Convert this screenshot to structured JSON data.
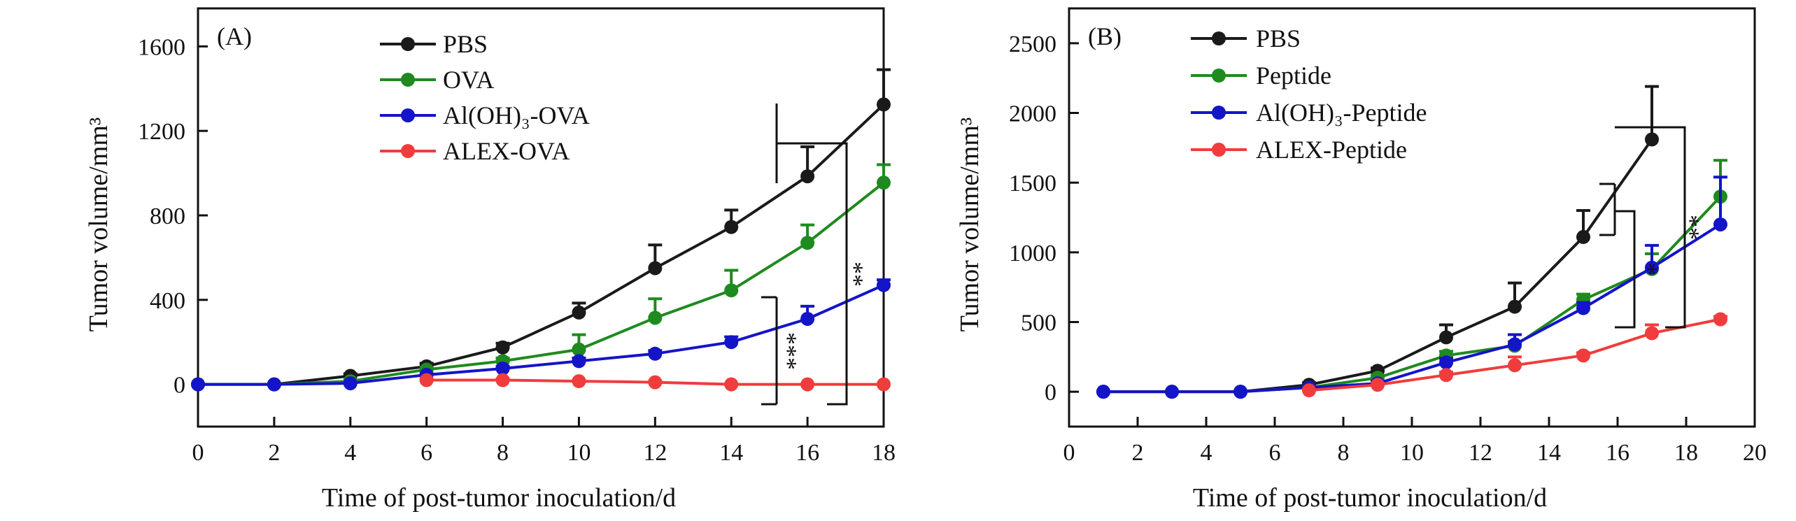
{
  "chart_data": [
    {
      "type": "line",
      "panel_label": "(A)",
      "xlabel": "Time of post-tumor inoculation/d",
      "ylabel": "Tumor volume/mm³",
      "xlim": [
        0,
        18
      ],
      "ylim": [
        -200,
        1780
      ],
      "xticks": [
        0,
        2,
        4,
        6,
        8,
        10,
        12,
        14,
        16,
        18
      ],
      "yticks": [
        0,
        400,
        800,
        1200,
        1600
      ],
      "legend": [
        "PBS",
        "OVA",
        "Al(OH)₃-OVA",
        "ALEX-OVA"
      ],
      "series": [
        {
          "name": "PBS",
          "color": "#1a1a1a",
          "x": [
            0,
            2,
            4,
            6,
            8,
            10,
            12,
            14,
            16,
            18
          ],
          "y": [
            0,
            0,
            40,
            85,
            175,
            340,
            550,
            745,
            985,
            1325
          ],
          "err": [
            0,
            0,
            10,
            15,
            20,
            45,
            110,
            80,
            140,
            165
          ]
        },
        {
          "name": "OVA",
          "color": "#1f8a1f",
          "x": [
            0,
            2,
            4,
            6,
            8,
            10,
            12,
            14,
            16,
            18
          ],
          "y": [
            0,
            0,
            15,
            70,
            110,
            165,
            315,
            445,
            670,
            955
          ],
          "err": [
            0,
            0,
            5,
            10,
            15,
            70,
            90,
            95,
            85,
            85
          ]
        },
        {
          "name": "Al(OH)₃-OVA",
          "color": "#1414c8",
          "x": [
            0,
            2,
            4,
            6,
            8,
            10,
            12,
            14,
            16,
            18
          ],
          "y": [
            0,
            0,
            5,
            45,
            75,
            110,
            145,
            200,
            310,
            470
          ],
          "err": [
            0,
            0,
            5,
            5,
            10,
            15,
            15,
            25,
            60,
            25
          ]
        },
        {
          "name": "ALEX-OVA",
          "color": "#f03c3c",
          "x": [
            6,
            8,
            10,
            12,
            14,
            16,
            18
          ],
          "y": [
            20,
            20,
            15,
            10,
            0,
            0,
            0
          ],
          "err": [
            5,
            5,
            5,
            5,
            0,
            0,
            0
          ]
        }
      ],
      "significance": [
        "***",
        "**"
      ]
    },
    {
      "type": "line",
      "panel_label": "(B)",
      "xlabel": "Time of post-tumor inoculation/d",
      "ylabel": "Tumor volume/mm³",
      "xlim": [
        0,
        20
      ],
      "ylim": [
        -250,
        2750
      ],
      "xticks": [
        0,
        2,
        4,
        6,
        8,
        10,
        12,
        14,
        16,
        18,
        20
      ],
      "yticks": [
        0,
        500,
        1000,
        1500,
        2000,
        2500
      ],
      "legend": [
        "PBS",
        "Peptide",
        "Al(OH)₃-Peptide",
        "ALEX-Peptide"
      ],
      "series": [
        {
          "name": "PBS",
          "color": "#1a1a1a",
          "x": [
            1,
            3,
            5,
            7,
            9,
            11,
            13,
            15,
            17
          ],
          "y": [
            0,
            0,
            0,
            50,
            150,
            390,
            610,
            1110,
            1810
          ],
          "err": [
            0,
            0,
            0,
            15,
            20,
            90,
            170,
            190,
            380
          ]
        },
        {
          "name": "Peptide",
          "color": "#1f8a1f",
          "x": [
            1,
            3,
            5,
            7,
            9,
            11,
            13,
            15,
            17,
            19
          ],
          "y": [
            0,
            0,
            0,
            30,
            100,
            260,
            330,
            660,
            880,
            1400
          ],
          "err": [
            0,
            0,
            0,
            10,
            15,
            30,
            30,
            40,
            110,
            260
          ]
        },
        {
          "name": "Al(OH)₃-Peptide",
          "color": "#1414c8",
          "x": [
            1,
            3,
            5,
            7,
            9,
            11,
            13,
            15,
            17,
            19
          ],
          "y": [
            0,
            0,
            0,
            30,
            60,
            210,
            340,
            600,
            890,
            1200
          ],
          "err": [
            0,
            0,
            0,
            10,
            15,
            30,
            70,
            40,
            160,
            340
          ]
        },
        {
          "name": "ALEX-Peptide",
          "color": "#f03c3c",
          "x": [
            7,
            9,
            11,
            13,
            15,
            17,
            19
          ],
          "y": [
            10,
            50,
            120,
            190,
            260,
            420,
            520
          ],
          "err": [
            5,
            10,
            20,
            60,
            20,
            60,
            20
          ]
        }
      ],
      "significance": [
        "*",
        "**"
      ]
    }
  ]
}
